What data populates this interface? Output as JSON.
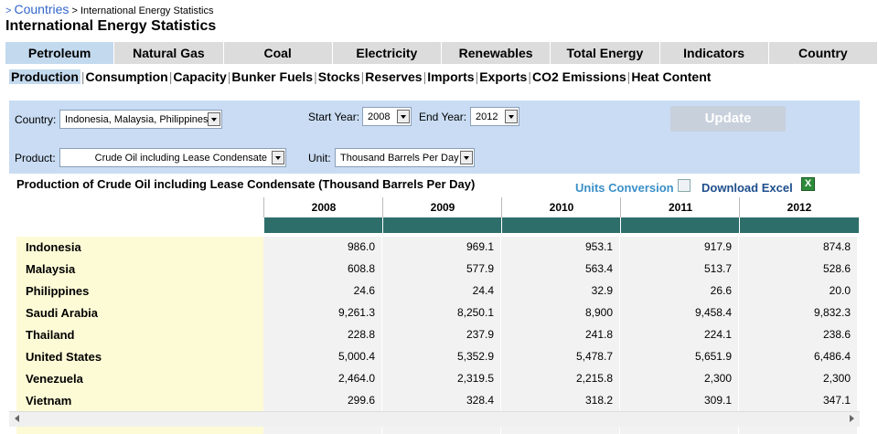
{
  "breadcrumb": {
    "root": "Countries",
    "separator": ">",
    "current": "International Energy Statistics"
  },
  "page_title": "International Energy Statistics",
  "tabs": [
    {
      "label": "Petroleum",
      "active": true
    },
    {
      "label": "Natural Gas"
    },
    {
      "label": "Coal"
    },
    {
      "label": "Electricity"
    },
    {
      "label": "Renewables"
    },
    {
      "label": "Total Energy"
    },
    {
      "label": "Indicators"
    },
    {
      "label": "Country"
    }
  ],
  "subnav": [
    {
      "label": "Production",
      "active": true
    },
    {
      "label": "Consumption"
    },
    {
      "label": "Capacity"
    },
    {
      "label": "Bunker Fuels"
    },
    {
      "label": "Stocks"
    },
    {
      "label": "Reserves"
    },
    {
      "label": "Imports"
    },
    {
      "label": "Exports"
    },
    {
      "label": "CO2 Emissions"
    },
    {
      "label": "Heat Content"
    }
  ],
  "filters": {
    "country_label": "Country:",
    "country_value": "Indonesia, Malaysia, Philippines,",
    "start_year_label": "Start Year:",
    "start_year_value": "2008",
    "end_year_label": "End Year:",
    "end_year_value": "2012",
    "product_label": "Product:",
    "product_value": "Crude Oil including Lease Condensate",
    "unit_label": "Unit:",
    "unit_value": "Thousand Barrels Per Day",
    "update_label": "Update"
  },
  "table": {
    "title": "Production of Crude Oil including Lease Condensate (Thousand Barrels Per Day)",
    "units_conversion_label": "Units Conversion",
    "download_excel_label": "Download Excel",
    "columns": [
      "2008",
      "2009",
      "2010",
      "2011",
      "2012"
    ],
    "rows": [
      {
        "country": "Indonesia",
        "values": [
          "986.0",
          "969.1",
          "953.1",
          "917.9",
          "874.8"
        ]
      },
      {
        "country": "Malaysia",
        "values": [
          "608.8",
          "577.9",
          "563.4",
          "513.7",
          "528.6"
        ]
      },
      {
        "country": "Philippines",
        "values": [
          "24.6",
          "24.4",
          "32.9",
          "26.6",
          "20.0"
        ]
      },
      {
        "country": "Saudi Arabia",
        "values": [
          "9,261.3",
          "8,250.1",
          "8,900",
          "9,458.4",
          "9,832.3"
        ]
      },
      {
        "country": "Thailand",
        "values": [
          "228.8",
          "237.9",
          "241.8",
          "224.1",
          "238.6"
        ]
      },
      {
        "country": "United States",
        "values": [
          "5,000.4",
          "5,352.9",
          "5,478.7",
          "5,651.9",
          "6,486.4"
        ]
      },
      {
        "country": "Venezuela",
        "values": [
          "2,464.0",
          "2,319.5",
          "2,215.8",
          "2,300",
          "2,300"
        ]
      },
      {
        "country": "Vietnam",
        "values": [
          "299.6",
          "328.4",
          "318.2",
          "309.1",
          "347.1"
        ]
      }
    ]
  },
  "colors": {
    "accent_tab": "#c3d9ee",
    "header_teal": "#2e6e6a",
    "country_bg": "#fdfbd6",
    "filter_bg": "#c9dcf3"
  },
  "icons": {
    "units_conversion": "table-icon",
    "download_excel": "excel-icon"
  }
}
